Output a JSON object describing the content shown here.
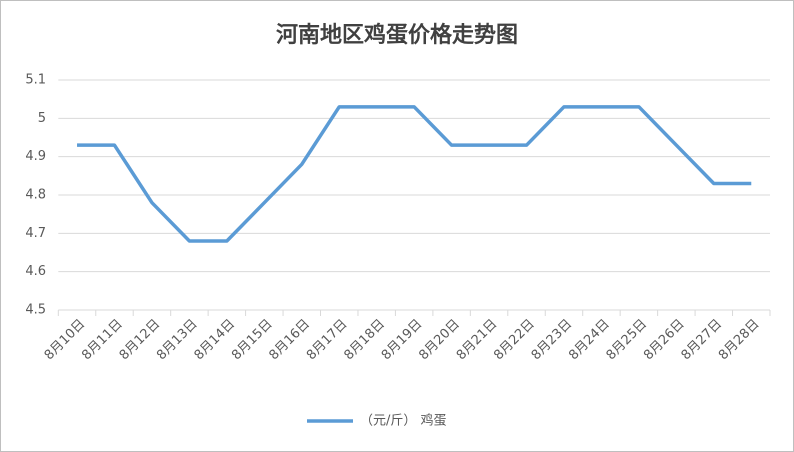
{
  "chart_data": {
    "type": "line",
    "title": "河南地区鸡蛋价格走势图",
    "categories": [
      "8月10日",
      "8月11日",
      "8月12日",
      "8月13日",
      "8月14日",
      "8月15日",
      "8月16日",
      "8月17日",
      "8月18日",
      "8月19日",
      "8月20日",
      "8月21日",
      "8月22日",
      "8月23日",
      "8月24日",
      "8月25日",
      "8月26日",
      "8月27日",
      "8月28日"
    ],
    "series": [
      {
        "name": "（元/斤） 鸡蛋",
        "color": "#5b9bd5",
        "values": [
          4.93,
          4.93,
          4.78,
          4.68,
          4.68,
          4.78,
          4.88,
          5.03,
          5.03,
          5.03,
          4.93,
          4.93,
          4.93,
          5.03,
          5.03,
          5.03,
          4.93,
          4.83,
          4.83
        ]
      }
    ],
    "ylim": [
      4.5,
      5.1
    ],
    "yticks": [
      4.5,
      4.6,
      4.7,
      4.8,
      4.9,
      5,
      5.1
    ],
    "grid": true,
    "legend": "bottom"
  }
}
